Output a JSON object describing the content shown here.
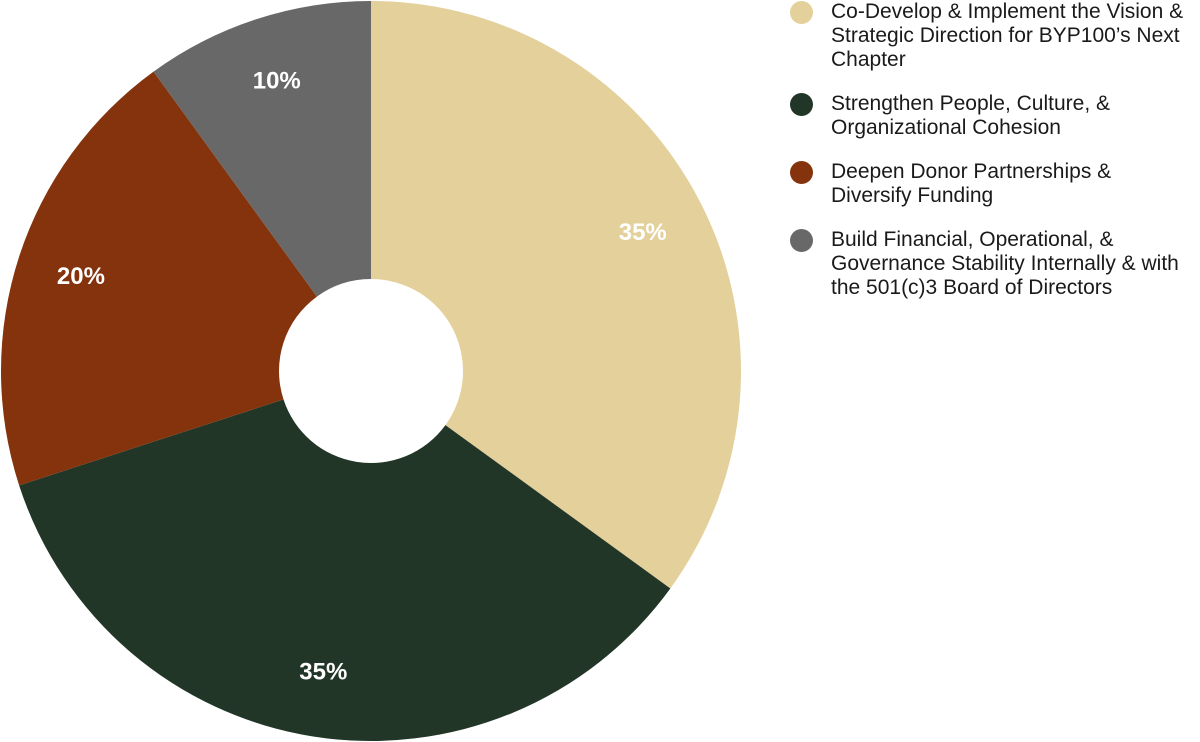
{
  "chart_data": {
    "type": "pie",
    "donut": true,
    "categories": [
      "Co-Develop & Implement the Vision & Strategic Direction for BYP100’s Next Chapter",
      "Strengthen People, Culture, & Organizational Cohesion",
      "Deepen Donor Partnerships & Diversify Funding",
      "Build Financial, Operational, & Governance Stability Internally & with the 501(c)3 Board of Directors"
    ],
    "values": [
      35,
      35,
      20,
      10
    ],
    "data_labels": [
      "35%",
      "35%",
      "20%",
      "10%"
    ],
    "colors": [
      "#E4D09B",
      "#223628",
      "#84330C",
      "#686868"
    ],
    "legend_position": "right",
    "title": ""
  }
}
